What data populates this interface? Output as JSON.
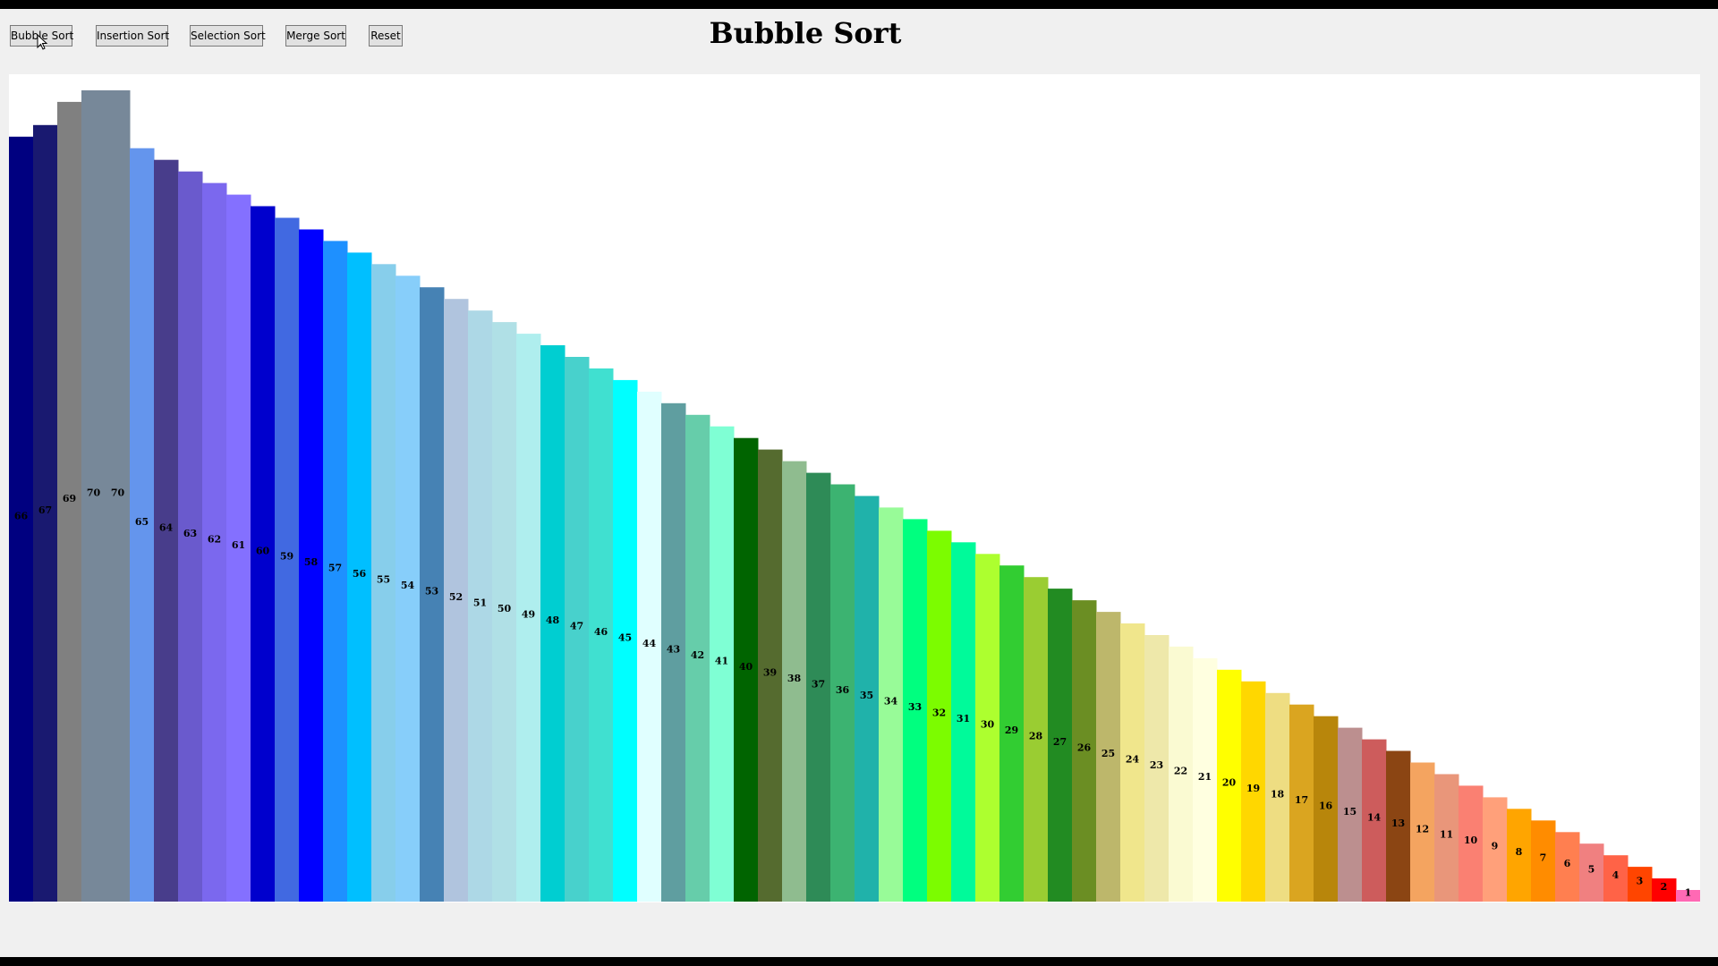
{
  "toolbar": {
    "bubble_label": "Bubble Sort",
    "insertion_label": "Insertion Sort",
    "selection_label": "Selection Sort",
    "merge_label": "Merge Sort",
    "reset_label": "Reset"
  },
  "title": "Bubble Sort",
  "chart_data": {
    "type": "bar",
    "title": "",
    "xlabel": "",
    "ylabel": "",
    "ylim": [
      0,
      71
    ],
    "grid": false,
    "legend": "none",
    "data_labels": true,
    "values": [
      66,
      67,
      69,
      70,
      70,
      65,
      64,
      63,
      62,
      61,
      60,
      59,
      58,
      57,
      56,
      55,
      54,
      53,
      52,
      51,
      50,
      49,
      48,
      47,
      46,
      45,
      44,
      43,
      42,
      41,
      40,
      39,
      38,
      37,
      36,
      35,
      34,
      33,
      32,
      31,
      30,
      29,
      28,
      27,
      26,
      25,
      24,
      23,
      22,
      21,
      20,
      19,
      18,
      17,
      16,
      15,
      14,
      13,
      12,
      11,
      10,
      9,
      8,
      7,
      6,
      5,
      4,
      3,
      2,
      1
    ],
    "colors": [
      "#000080",
      "#191970",
      "#808080",
      "#778899",
      "#778899",
      "#6495ED",
      "#483D8B",
      "#6A5ACD",
      "#7B68EE",
      "#8470FF",
      "#0000CD",
      "#4169E1",
      "#0000FF",
      "#1E90FF",
      "#00BFFF",
      "#87CEEB",
      "#87CEFA",
      "#4682B4",
      "#B0C4DE",
      "#ADD8E6",
      "#B0E0E6",
      "#AFEEEE",
      "#00CED1",
      "#48D1CC",
      "#40E0D0",
      "#00FFFF",
      "#E0FFFF",
      "#5F9EA0",
      "#66CDAA",
      "#7FFFD4",
      "#006400",
      "#556B2F",
      "#8FBC8F",
      "#2E8B57",
      "#3CB371",
      "#20B2AA",
      "#98FB98",
      "#00FF7F",
      "#7CFC00",
      "#00FA9A",
      "#ADFF2F",
      "#32CD32",
      "#9ACD32",
      "#228B22",
      "#6B8E23",
      "#BDB76B",
      "#F0E68C",
      "#EEE8AA",
      "#FAFAD2",
      "#FFFFE0",
      "#FFFF00",
      "#FFD700",
      "#EEDD82",
      "#DAA520",
      "#B8860B",
      "#BC8F8F",
      "#CD5C5C",
      "#8B4513",
      "#F4A460",
      "#E9967A",
      "#FA8072",
      "#FFA07A",
      "#FFA500",
      "#FF8C00",
      "#FF7F50",
      "#F08080",
      "#FF6347",
      "#FF4500",
      "#FF0000",
      "#FF69B4"
    ]
  }
}
